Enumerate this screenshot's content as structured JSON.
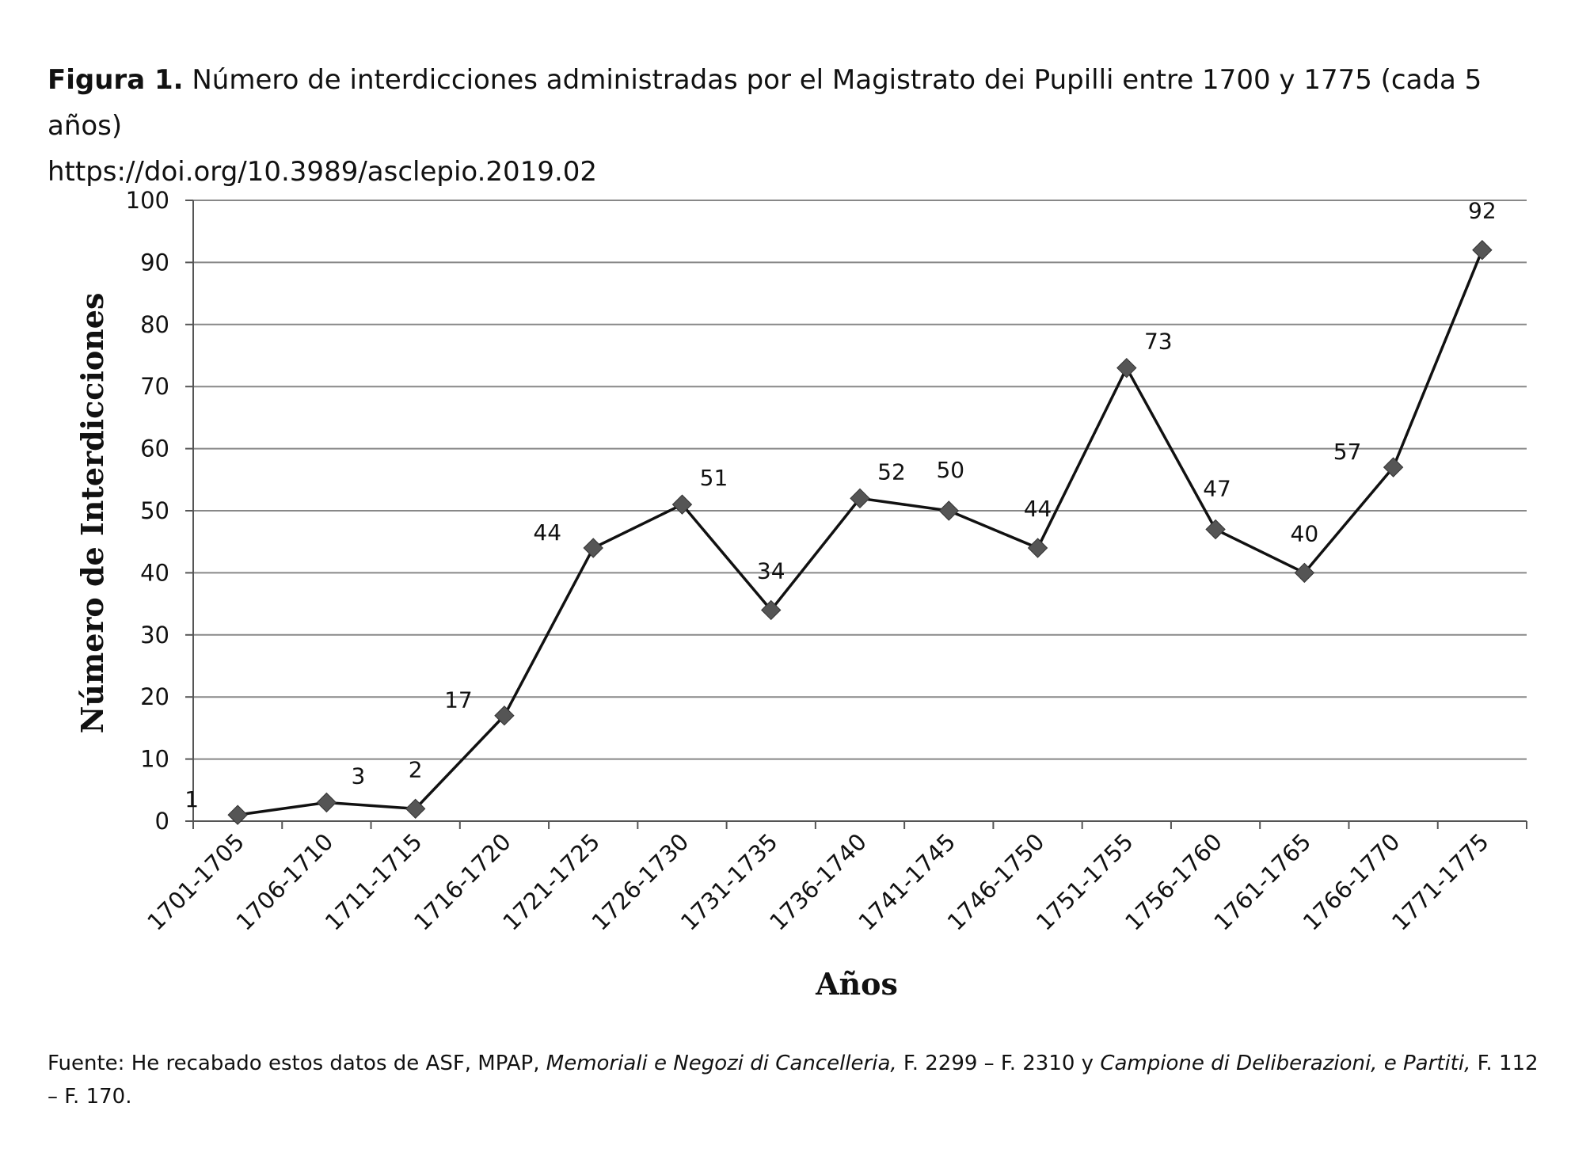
{
  "caption": {
    "label": "Figura 1.",
    "text": " Número de interdicciones administradas por el Magistrato dei Pupilli entre 1700 y 1775 (cada 5 años)",
    "doi": "https://doi.org/10.3989/asclepio.2019.02"
  },
  "chart_data": {
    "type": "line",
    "title": "",
    "xlabel": "Años",
    "ylabel": "Número de Interdicciones",
    "ylim": [
      0,
      100
    ],
    "yticks": [
      0,
      10,
      20,
      30,
      40,
      50,
      60,
      70,
      80,
      90,
      100
    ],
    "grid": true,
    "marker": "diamond",
    "categories": [
      "1701-1705",
      "1706-1710",
      "1711-1715",
      "1716-1720",
      "1721-1725",
      "1726-1730",
      "1731-1735",
      "1736-1740",
      "1741-1745",
      "1746-1750",
      "1751-1755",
      "1756-1760",
      "1761-1765",
      "1766-1770",
      "1771-1775"
    ],
    "values": [
      1,
      3,
      2,
      17,
      44,
      51,
      34,
      52,
      50,
      44,
      73,
      47,
      40,
      57,
      92
    ],
    "line_color": "#111111",
    "marker_color": "#555555",
    "grid_color": "#888888"
  },
  "footnote": {
    "part1": "Fuente: He recabado estos datos de ASF, MPAP, ",
    "italic1": "Memoriali e Negozi di Cancelleria,",
    "part2": " F. 2299 – F. 2310 y ",
    "italic2": "Campione di Deliberazioni, e Partiti,",
    "part3": " F. 112 – F. 170."
  }
}
